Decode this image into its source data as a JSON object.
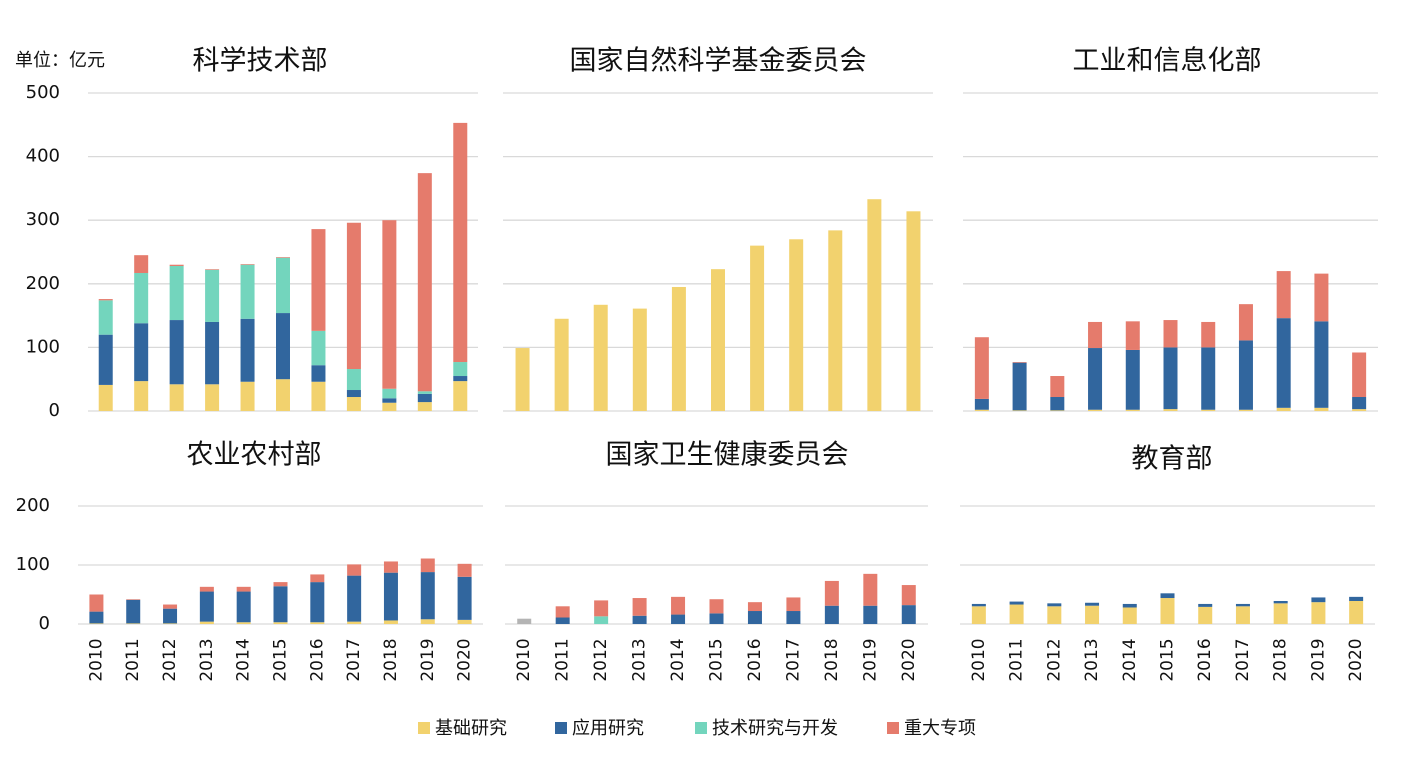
{
  "chart_data": [
    {
      "type": "bar",
      "title": "科学技术部",
      "y_label": "单位：亿元",
      "categories": [
        null,
        null,
        null,
        null,
        null,
        null,
        null,
        null,
        null,
        null,
        null
      ],
      "ylim": [
        0,
        500
      ],
      "yticks": [
        0,
        100,
        200,
        300,
        400,
        500
      ],
      "grid": true,
      "series": [
        {
          "name": "基础研究",
          "color": "#f2d26e",
          "values": [
            41,
            47,
            42,
            42,
            46,
            50,
            46,
            22,
            13,
            14,
            47
          ]
        },
        {
          "name": "应用研究",
          "color": "#31669e",
          "values": [
            79,
            91,
            101,
            98,
            99,
            104,
            26,
            11,
            7,
            13,
            8
          ]
        },
        {
          "name": "技术研究与开发",
          "color": "#73d5bd",
          "values": [
            54,
            79,
            85,
            82,
            85,
            87,
            54,
            33,
            15,
            4,
            22
          ]
        },
        {
          "name": "重大专项",
          "color": "#e57b6c",
          "values": [
            2,
            28,
            2,
            1,
            1,
            1,
            160,
            230,
            265,
            343,
            376
          ]
        }
      ]
    },
    {
      "type": "bar",
      "title": "国家自然科学基金委员会",
      "categories": [
        null,
        null,
        null,
        null,
        null,
        null,
        null,
        null,
        null,
        null,
        null
      ],
      "ylim": [
        0,
        500
      ],
      "yticks": [
        0,
        100,
        200,
        300,
        400,
        500
      ],
      "grid": true,
      "series": [
        {
          "name": "基础研究",
          "color": "#f2d26e",
          "values": [
            99,
            145,
            167,
            161,
            195,
            223,
            260,
            270,
            284,
            333,
            314
          ]
        }
      ]
    },
    {
      "type": "bar",
      "title": "工业和信息化部",
      "categories": [
        null,
        null,
        null,
        null,
        null,
        null,
        null,
        null,
        null,
        null,
        null
      ],
      "ylim": [
        0,
        500
      ],
      "yticks": [
        0,
        100,
        200,
        300,
        400,
        500
      ],
      "grid": true,
      "series": [
        {
          "name": "基础研究",
          "color": "#f2d26e",
          "values": [
            2,
            1,
            1,
            2,
            2,
            3,
            2,
            2,
            5,
            5,
            3
          ]
        },
        {
          "name": "应用研究",
          "color": "#31669e",
          "values": [
            17,
            75,
            21,
            97,
            94,
            97,
            98,
            109,
            141,
            136,
            19
          ]
        },
        {
          "name": "重大专项",
          "color": "#e57b6c",
          "values": [
            97,
            1,
            33,
            41,
            45,
            43,
            40,
            57,
            74,
            75,
            70
          ]
        }
      ]
    },
    {
      "type": "bar",
      "title": "农业农村部",
      "categories": [
        "2010",
        "2011",
        "2012",
        "2013",
        "2014",
        "2015",
        "2016",
        "2017",
        "2018",
        "2019",
        "2020"
      ],
      "ylim": [
        0,
        200
      ],
      "yticks": [
        0,
        100,
        200
      ],
      "grid": true,
      "series": [
        {
          "name": "基础研究",
          "color": "#f2d26e",
          "values": [
            1,
            1,
            1,
            4,
            3,
            3,
            3,
            4,
            6,
            8,
            7
          ]
        },
        {
          "name": "应用研究",
          "color": "#31669e",
          "values": [
            20,
            40,
            25,
            51,
            52,
            61,
            68,
            78,
            81,
            80,
            73
          ]
        },
        {
          "name": "重大专项",
          "color": "#e57b6c",
          "values": [
            29,
            1,
            7,
            8,
            8,
            7,
            13,
            19,
            19,
            23,
            22
          ]
        }
      ]
    },
    {
      "type": "bar",
      "title": "国家卫生健康委员会",
      "categories": [
        "2010",
        "2011",
        "2012",
        "2013",
        "2014",
        "2015",
        "2016",
        "2017",
        "2018",
        "2019",
        "2020"
      ],
      "ylim": [
        0,
        200
      ],
      "yticks": [
        0,
        100,
        200
      ],
      "grid": true,
      "series": [
        {
          "color": "#b4b4b4",
          "values": [
            9,
            0,
            0,
            0,
            0,
            0,
            0,
            0,
            0,
            0,
            0
          ]
        },
        {
          "name": "应用研究",
          "color": "#31669e",
          "values": [
            0,
            11,
            0,
            14,
            16,
            18,
            22,
            22,
            31,
            31,
            32
          ]
        },
        {
          "name": "技术研究与开发",
          "color": "#73d5bd",
          "values": [
            0,
            0,
            13,
            0,
            0,
            0,
            0,
            0,
            0,
            0,
            0
          ]
        },
        {
          "name": "重大专项",
          "color": "#e57b6c",
          "values": [
            0,
            19,
            27,
            30,
            30,
            24,
            15,
            23,
            42,
            54,
            34
          ]
        }
      ]
    },
    {
      "type": "bar",
      "title": "教育部",
      "categories": [
        "2010",
        "2011",
        "2012",
        "2013",
        "2014",
        "2015",
        "2016",
        "2017",
        "2018",
        "2019",
        "2020"
      ],
      "ylim": [
        0,
        200
      ],
      "yticks": [
        0,
        100,
        200
      ],
      "grid": true,
      "series": [
        {
          "name": "基础研究",
          "color": "#f2d26e",
          "values": [
            30,
            33,
            30,
            31,
            28,
            44,
            29,
            30,
            35,
            37,
            39
          ]
        },
        {
          "name": "应用研究",
          "color": "#31669e",
          "values": [
            4,
            5,
            5,
            5,
            6,
            8,
            5,
            4,
            4,
            8,
            7
          ]
        }
      ]
    }
  ]
}
